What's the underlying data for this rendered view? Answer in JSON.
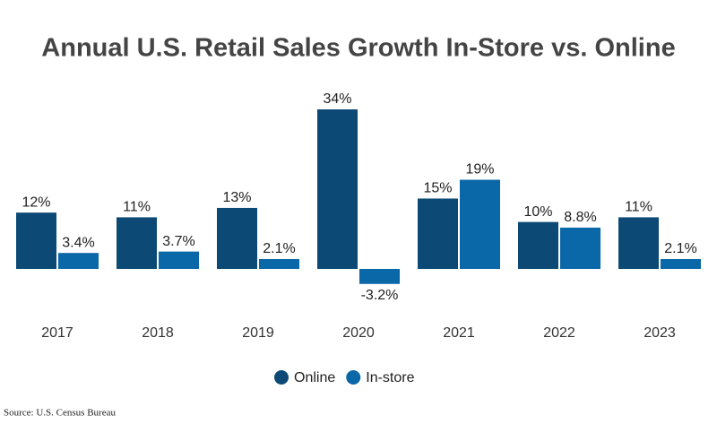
{
  "chart_data": {
    "type": "bar",
    "title": "Annual U.S. Retail Sales Growth In-Store vs. Online",
    "categories": [
      "2017",
      "2018",
      "2019",
      "2020",
      "2021",
      "2022",
      "2023"
    ],
    "series": [
      {
        "name": "Online",
        "color": "#0c4a75",
        "values": [
          12,
          11,
          13,
          34,
          15,
          10,
          11
        ],
        "value_labels": [
          "12%",
          "11%",
          "13%",
          "34%",
          "15%",
          "10%",
          "11%"
        ]
      },
      {
        "name": "In-store",
        "color": "#0a67a8",
        "values": [
          3.4,
          3.7,
          2.1,
          -3.2,
          19,
          8.8,
          2.1
        ],
        "value_labels": [
          "3.4%",
          "3.7%",
          "2.1%",
          "-3.2%",
          "19%",
          "8.8%",
          "2.1%"
        ]
      }
    ],
    "legend": "bottom",
    "source": "Source: U.S. Census Bureau"
  }
}
